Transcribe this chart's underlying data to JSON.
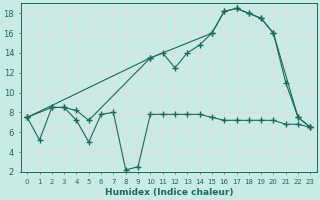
{
  "title": "",
  "xlabel": "Humidex (Indice chaleur)",
  "bg_color": "#c8ebe5",
  "line_color": "#1a6b5a",
  "grid_color": "#e8d8d8",
  "xlim": [
    -0.5,
    23.5
  ],
  "ylim": [
    2,
    19
  ],
  "yticks": [
    2,
    4,
    6,
    8,
    10,
    12,
    14,
    16,
    18
  ],
  "xticks": [
    0,
    1,
    2,
    3,
    4,
    5,
    6,
    7,
    8,
    9,
    10,
    11,
    12,
    13,
    14,
    15,
    16,
    17,
    18,
    19,
    20,
    21,
    22,
    23
  ],
  "line1_x": [
    0,
    1,
    2,
    3,
    4,
    5,
    6,
    7,
    8,
    9,
    10,
    11,
    12,
    13,
    14,
    15,
    16,
    17,
    18,
    19,
    20,
    21,
    22,
    23
  ],
  "line1_y": [
    7.5,
    5.2,
    8.5,
    8.5,
    7.2,
    5.0,
    7.8,
    8.0,
    2.2,
    2.5,
    7.8,
    7.8,
    7.8,
    7.8,
    7.8,
    7.5,
    7.2,
    7.2,
    7.2,
    7.2,
    7.2,
    6.8,
    6.8,
    6.5
  ],
  "line2_x": [
    0,
    2,
    3,
    4,
    5,
    10,
    11,
    12,
    13,
    14,
    15,
    16,
    17,
    18,
    19,
    20,
    21,
    22,
    23
  ],
  "line2_y": [
    7.5,
    8.5,
    8.5,
    8.2,
    7.2,
    13.5,
    14.0,
    12.5,
    14.0,
    14.8,
    16.0,
    18.2,
    18.5,
    18.0,
    17.5,
    16.0,
    11.0,
    7.5,
    6.5
  ],
  "line3_x": [
    0,
    10,
    15,
    16,
    17,
    18,
    19,
    20,
    22,
    23
  ],
  "line3_y": [
    7.5,
    13.5,
    16.0,
    18.2,
    18.5,
    18.0,
    17.5,
    16.0,
    7.5,
    6.5
  ]
}
